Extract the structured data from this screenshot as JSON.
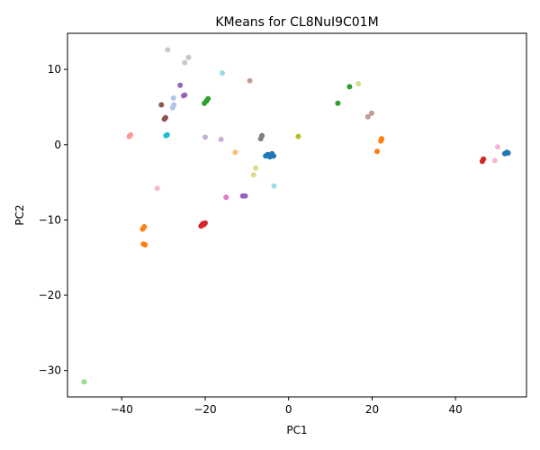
{
  "chart_data": {
    "type": "scatter",
    "title": "KMeans for CL8NuI9C01M",
    "xlabel": "PC1",
    "ylabel": "PC2",
    "xlim": [
      -53,
      57
    ],
    "ylim": [
      -33.5,
      14.8
    ],
    "xticks": [
      -40,
      -20,
      0,
      20,
      40
    ],
    "yticks": [
      -30,
      -20,
      -10,
      0,
      10
    ],
    "grid": false,
    "legend": "none",
    "points": [
      {
        "x": -49,
        "y": -31.5,
        "color": "#98df8a"
      },
      {
        "x": -38.2,
        "y": 1.1,
        "color": "#ff9896"
      },
      {
        "x": -37.9,
        "y": 1.3,
        "color": "#ff9896"
      },
      {
        "x": -35.0,
        "y": -11.2,
        "color": "#ff7f0e"
      },
      {
        "x": -34.6,
        "y": -10.9,
        "color": "#ff7f0e"
      },
      {
        "x": -34.8,
        "y": -13.2,
        "color": "#ff7f0e"
      },
      {
        "x": -34.4,
        "y": -13.3,
        "color": "#ff7f0e"
      },
      {
        "x": -31.5,
        "y": -5.8,
        "color": "#f7b6d2"
      },
      {
        "x": -30.5,
        "y": 5.3,
        "color": "#8c564b"
      },
      {
        "x": -29.8,
        "y": 3.4,
        "color": "#8c564b"
      },
      {
        "x": -29.5,
        "y": 3.6,
        "color": "#8c564b"
      },
      {
        "x": -29.4,
        "y": 1.2,
        "color": "#17becf"
      },
      {
        "x": -29.1,
        "y": 1.3,
        "color": "#17becf"
      },
      {
        "x": -29.0,
        "y": 12.6,
        "color": "#c7c7c7"
      },
      {
        "x": -27.8,
        "y": 4.9,
        "color": "#aec7e8"
      },
      {
        "x": -27.5,
        "y": 5.3,
        "color": "#aec7e8"
      },
      {
        "x": -27.6,
        "y": 6.2,
        "color": "#aec7e8"
      },
      {
        "x": -26.0,
        "y": 7.9,
        "color": "#9467bd"
      },
      {
        "x": -25.2,
        "y": 6.5,
        "color": "#9467bd"
      },
      {
        "x": -24.9,
        "y": 6.6,
        "color": "#9467bd"
      },
      {
        "x": -24.9,
        "y": 10.9,
        "color": "#c7c7c7"
      },
      {
        "x": -24.0,
        "y": 11.6,
        "color": "#c7c7c7"
      },
      {
        "x": -21.0,
        "y": -10.8,
        "color": "#d62728"
      },
      {
        "x": -20.6,
        "y": -10.5,
        "color": "#d62728"
      },
      {
        "x": -20.0,
        "y": -10.4,
        "color": "#d62728"
      },
      {
        "x": -20.3,
        "y": -10.6,
        "color": "#d62728"
      },
      {
        "x": -20.2,
        "y": 5.5,
        "color": "#2ca02c"
      },
      {
        "x": -19.7,
        "y": 5.8,
        "color": "#2ca02c"
      },
      {
        "x": -19.3,
        "y": 6.1,
        "color": "#2ca02c"
      },
      {
        "x": -20.0,
        "y": 1.0,
        "color": "#c5b0d5"
      },
      {
        "x": -16.2,
        "y": 0.7,
        "color": "#c5b0d5"
      },
      {
        "x": -15.9,
        "y": 9.5,
        "color": "#9edae5"
      },
      {
        "x": -15.0,
        "y": -7.0,
        "color": "#e377c2"
      },
      {
        "x": -12.8,
        "y": -1.0,
        "color": "#ffbb78"
      },
      {
        "x": -11.0,
        "y": -6.8,
        "color": "#9467bd"
      },
      {
        "x": -10.4,
        "y": -6.8,
        "color": "#9467bd"
      },
      {
        "x": -9.3,
        "y": 8.5,
        "color": "#c49c94"
      },
      {
        "x": -8.4,
        "y": -4.0,
        "color": "#dbdb8d"
      },
      {
        "x": -7.9,
        "y": -3.1,
        "color": "#dbdb8d"
      },
      {
        "x": -6.7,
        "y": 0.8,
        "color": "#7f7f7f"
      },
      {
        "x": -6.4,
        "y": 1.2,
        "color": "#7f7f7f"
      },
      {
        "x": -5.5,
        "y": -1.5,
        "color": "#1f77b4"
      },
      {
        "x": -5.0,
        "y": -1.3,
        "color": "#1f77b4"
      },
      {
        "x": -4.5,
        "y": -1.6,
        "color": "#1f77b4"
      },
      {
        "x": -4.0,
        "y": -1.2,
        "color": "#1f77b4"
      },
      {
        "x": -3.6,
        "y": -1.5,
        "color": "#1f77b4"
      },
      {
        "x": -3.5,
        "y": -5.5,
        "color": "#9edae5"
      },
      {
        "x": 2.3,
        "y": 1.1,
        "color": "#bcbd22"
      },
      {
        "x": 11.8,
        "y": 5.5,
        "color": "#2ca02c"
      },
      {
        "x": 14.6,
        "y": 7.7,
        "color": "#2ca02c"
      },
      {
        "x": 16.7,
        "y": 8.1,
        "color": "#dbdb8d"
      },
      {
        "x": 19.0,
        "y": 3.7,
        "color": "#c49c94"
      },
      {
        "x": 19.9,
        "y": 4.2,
        "color": "#c49c94"
      },
      {
        "x": 21.2,
        "y": -0.9,
        "color": "#ff7f0e"
      },
      {
        "x": 22.1,
        "y": 0.5,
        "color": "#ff7f0e"
      },
      {
        "x": 22.3,
        "y": 0.8,
        "color": "#ff7f0e"
      },
      {
        "x": 46.4,
        "y": -2.2,
        "color": "#d62728"
      },
      {
        "x": 46.7,
        "y": -1.9,
        "color": "#d62728"
      },
      {
        "x": 49.4,
        "y": -2.1,
        "color": "#f7b6d2"
      },
      {
        "x": 50.1,
        "y": -0.3,
        "color": "#f7b6d2"
      },
      {
        "x": 51.8,
        "y": -1.2,
        "color": "#1f77b4"
      },
      {
        "x": 52.3,
        "y": -1.0,
        "color": "#1f77b4"
      },
      {
        "x": 52.6,
        "y": -1.1,
        "color": "#1f77b4"
      }
    ]
  }
}
